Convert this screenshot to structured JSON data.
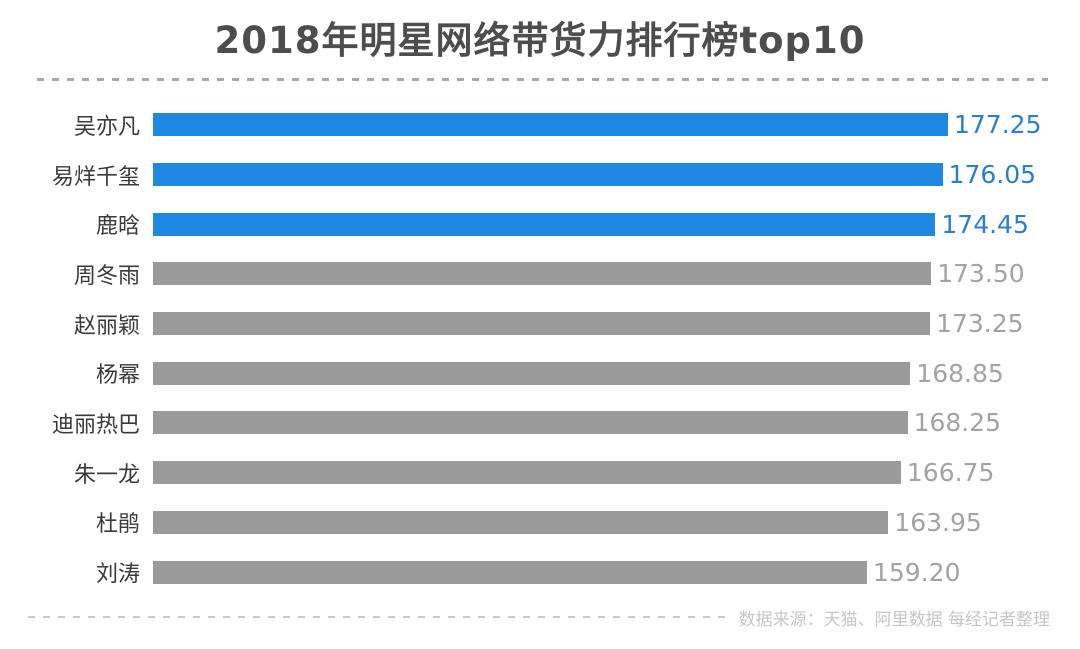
{
  "title": "2018年明星网络带货力排行榜top10",
  "footer": {
    "source_text": "数据来源：天猫、阿里数据  每经记者整理"
  },
  "colors": {
    "highlight_bar": "#1e87e1",
    "highlight_value_text": "#2a7dd1",
    "normal_bar": "#9a9a9a",
    "normal_value_text": "#a3a3a3",
    "title_text": "#4d4d4d",
    "category_text": "#3a3a3a",
    "divider": "#a8a8a8"
  },
  "chart_data": {
    "type": "bar",
    "orientation": "horizontal",
    "title": "2018年明星网络带货力排行榜top10",
    "categories": [
      "吴亦凡",
      "易烊千玺",
      "鹿晗",
      "周冬雨",
      "赵丽颖",
      "杨幂",
      "迪丽热巴",
      "朱一龙",
      "杜鹃",
      "刘涛"
    ],
    "values": [
      177.25,
      176.05,
      174.45,
      173.5,
      173.25,
      168.85,
      168.25,
      166.75,
      163.95,
      159.2
    ],
    "value_labels": [
      "177.25",
      "176.05",
      "174.45",
      "173.50",
      "173.25",
      "168.85",
      "168.25",
      "166.75",
      "163.95",
      "159.20"
    ],
    "highlighted_top_n": 3,
    "xlim": [
      0,
      177.25
    ],
    "xlabel": "",
    "ylabel": "",
    "grid": false,
    "legend": false,
    "annotation": "数据来源：天猫、阿里数据  每经记者整理"
  }
}
